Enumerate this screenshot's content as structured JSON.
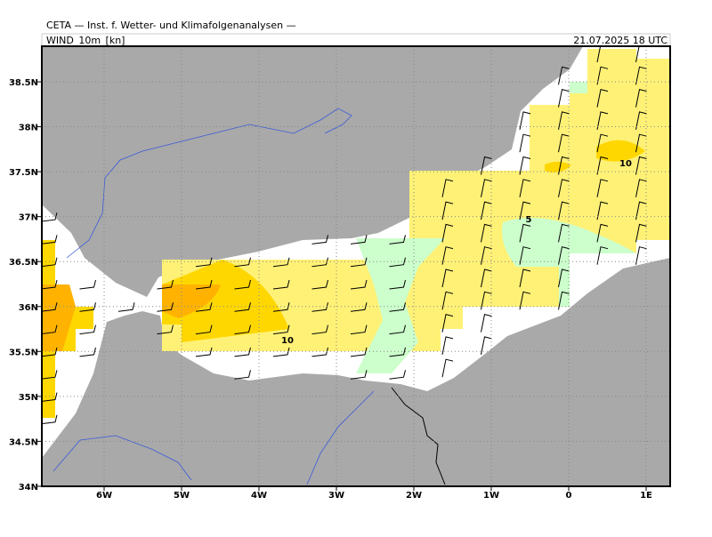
{
  "header": {
    "title": "CETA — Inst. f. Wetter- und Klimafolgenanalysen —",
    "field": "WIND_10m_[kn]",
    "valid_time": "21.07.2025 18 UTC"
  },
  "map": {
    "lat_labels": [
      "38.5N",
      "38N",
      "37.5N",
      "37N",
      "36.5N",
      "36N",
      "35.5N",
      "35N",
      "34.5N",
      "34N"
    ],
    "lon_labels": [
      "6W",
      "5W",
      "4W",
      "3W",
      "2W",
      "1W",
      "0",
      "1E"
    ],
    "contour_labels": [
      "10",
      "10",
      "5"
    ]
  }
}
